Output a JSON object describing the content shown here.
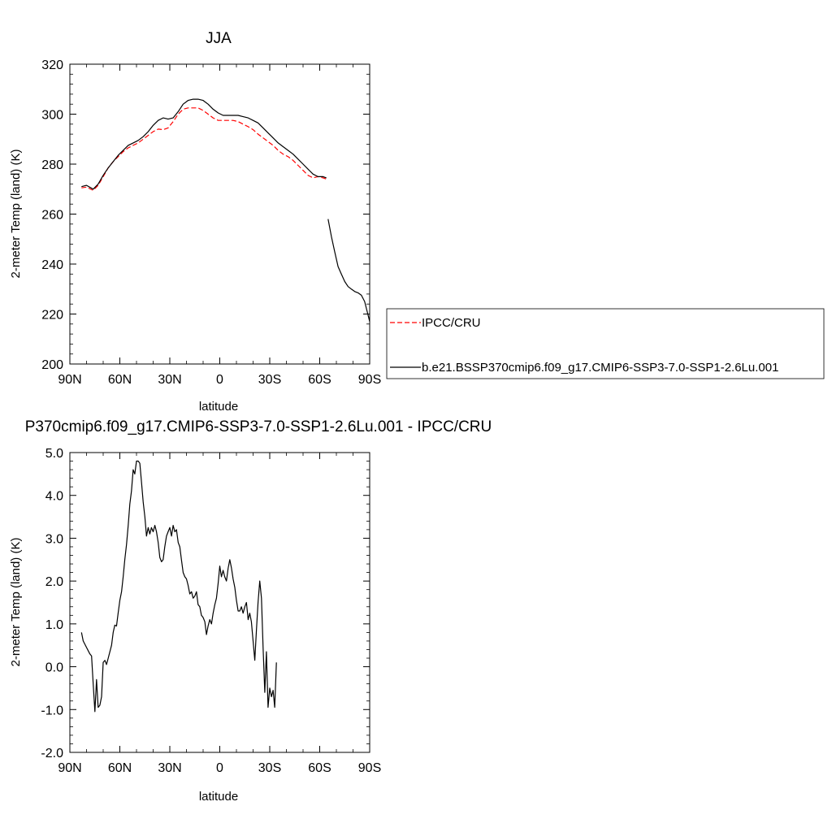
{
  "chart_data": [
    {
      "type": "line",
      "title": "JJA",
      "xlabel": "latitude",
      "ylabel": "2-meter Temp (land) (K)",
      "xlim": [
        90,
        -90
      ],
      "ylim": [
        200,
        320
      ],
      "x_ticks": [
        90,
        60,
        30,
        0,
        -30,
        -60,
        -90
      ],
      "x_tick_labels": [
        "90N",
        "60N",
        "30N",
        "0",
        "30S",
        "60S",
        "90S"
      ],
      "y_ticks": [
        200,
        220,
        240,
        260,
        280,
        300,
        320
      ],
      "y_tick_labels": [
        "200",
        "220",
        "240",
        "260",
        "280",
        "300",
        "320"
      ],
      "legend": {
        "placement": "outside-right"
      },
      "series": [
        {
          "name": "IPCC/CRU",
          "color": "#ff0000",
          "style": "dashed",
          "segments": [
            [
              [
                83,
                270.5
              ],
              [
                80,
                270.8
              ],
              [
                76,
                269.5
              ],
              [
                73,
                271.5
              ],
              [
                70,
                275
              ],
              [
                67,
                278.5
              ],
              [
                64,
                281
              ],
              [
                61,
                283
              ],
              [
                58,
                285
              ],
              [
                55,
                286.5
              ],
              [
                52,
                287.5
              ],
              [
                49,
                288.5
              ],
              [
                46,
                290
              ],
              [
                43,
                291.5
              ],
              [
                40,
                293
              ],
              [
                37,
                294
              ],
              [
                34,
                293.8
              ],
              [
                31,
                294.5
              ],
              [
                28,
                297
              ],
              [
                25,
                300
              ],
              [
                22,
                302
              ],
              [
                19,
                302.5
              ],
              [
                16,
                302.5
              ],
              [
                13,
                302.5
              ],
              [
                10,
                301.5
              ],
              [
                7,
                300
              ],
              [
                4,
                298.5
              ],
              [
                1,
                297.5
              ],
              [
                -2,
                297.5
              ],
              [
                -5,
                297.5
              ],
              [
                -8,
                297.5
              ],
              [
                -11,
                297
              ],
              [
                -14,
                296
              ],
              [
                -17,
                295
              ],
              [
                -20,
                293.8
              ],
              [
                -23,
                292
              ],
              [
                -26,
                290.5
              ],
              [
                -29,
                289
              ],
              [
                -32,
                287.5
              ],
              [
                -35,
                285.5
              ],
              [
                -38,
                284
              ],
              [
                -41,
                283
              ],
              [
                -44,
                281.5
              ],
              [
                -47,
                279.5
              ],
              [
                -50,
                277.5
              ],
              [
                -53,
                275.5
              ],
              [
                -56,
                274.5
              ],
              [
                -59,
                275
              ],
              [
                -62,
                274.5
              ],
              [
                -64,
                274
              ]
            ]
          ]
        },
        {
          "name": "b.e21.BSSP370cmip6.f09_g17.CMIP6-SSP3-7.0-SSP1-2.6Lu.001",
          "color": "#000000",
          "style": "solid",
          "segments": [
            [
              [
                83,
                271
              ],
              [
                80,
                271.5
              ],
              [
                76,
                270
              ],
              [
                73,
                272
              ],
              [
                70,
                275.5
              ],
              [
                67,
                278.5
              ],
              [
                64,
                281
              ],
              [
                61,
                283.5
              ],
              [
                58,
                285.5
              ],
              [
                55,
                287.5
              ],
              [
                52,
                288.5
              ],
              [
                49,
                289.5
              ],
              [
                46,
                291
              ],
              [
                43,
                293
              ],
              [
                40,
                295.5
              ],
              [
                37,
                297.5
              ],
              [
                34,
                298.5
              ],
              [
                31,
                298
              ],
              [
                28,
                298.5
              ],
              [
                25,
                301
              ],
              [
                22,
                304
              ],
              [
                19,
                305.5
              ],
              [
                16,
                306
              ],
              [
                13,
                306
              ],
              [
                10,
                305.5
              ],
              [
                7,
                304
              ],
              [
                4,
                302
              ],
              [
                1,
                300.5
              ],
              [
                -2,
                299.5
              ],
              [
                -5,
                299.5
              ],
              [
                -8,
                299.5
              ],
              [
                -11,
                299.5
              ],
              [
                -14,
                299
              ],
              [
                -17,
                298.5
              ],
              [
                -20,
                297.5
              ],
              [
                -23,
                296.5
              ],
              [
                -26,
                294.5
              ],
              [
                -29,
                292.5
              ],
              [
                -32,
                290.5
              ],
              [
                -35,
                288.5
              ],
              [
                -38,
                287
              ],
              [
                -41,
                285.5
              ],
              [
                -44,
                284
              ],
              [
                -47,
                282
              ],
              [
                -50,
                280
              ],
              [
                -53,
                278
              ],
              [
                -56,
                276
              ],
              [
                -59,
                275
              ],
              [
                -62,
                275
              ],
              [
                -64,
                274.5
              ]
            ],
            [
              [
                -65,
                258
              ],
              [
                -67,
                251
              ],
              [
                -69,
                245
              ],
              [
                -71,
                239
              ],
              [
                -73,
                236
              ],
              [
                -75,
                233
              ],
              [
                -77,
                231
              ],
              [
                -79,
                230
              ],
              [
                -81,
                229
              ],
              [
                -83,
                228.5
              ],
              [
                -85,
                227.5
              ],
              [
                -87,
                225
              ],
              [
                -88.5,
                221
              ],
              [
                -90,
                217
              ]
            ]
          ]
        }
      ]
    },
    {
      "type": "line",
      "title": "P370cmip6.f09_g17.CMIP6-SSP3-7.0-SSP1-2.6Lu.001 - IPCC/CRU",
      "xlabel": "latitude",
      "ylabel": "2-meter Temp (land) (K)",
      "xlim": [
        90,
        -90
      ],
      "ylim": [
        -2.0,
        5.0
      ],
      "x_ticks": [
        90,
        60,
        30,
        0,
        -30,
        -60,
        -90
      ],
      "x_tick_labels": [
        "90N",
        "60N",
        "30N",
        "0",
        "30S",
        "60S",
        "90S"
      ],
      "y_ticks": [
        -2.0,
        -1.0,
        0.0,
        1.0,
        2.0,
        3.0,
        4.0,
        5.0
      ],
      "y_tick_labels": [
        "-2.0",
        "-1.0",
        "0.0",
        "1.0",
        "2.0",
        "3.0",
        "4.0",
        "5.0"
      ],
      "series": [
        {
          "color": "#000000",
          "style": "solid",
          "segments": [
            [
              [
                83,
                0.8
              ],
              [
                82,
                0.6
              ],
              [
                80,
                0.45
              ],
              [
                78,
                0.3
              ],
              [
                77,
                0.25
              ],
              [
                76,
                -0.4
              ],
              [
                75,
                -1.05
              ],
              [
                74,
                -0.3
              ],
              [
                73,
                -0.95
              ],
              [
                72,
                -0.9
              ],
              [
                71,
                -0.7
              ],
              [
                70,
                0.1
              ],
              [
                69,
                0.15
              ],
              [
                68,
                0.05
              ],
              [
                67,
                0.2
              ],
              [
                65,
                0.5
              ],
              [
                64,
                0.8
              ],
              [
                63,
                0.97
              ],
              [
                62,
                0.95
              ],
              [
                61,
                1.25
              ],
              [
                60,
                1.55
              ],
              [
                59,
                1.75
              ],
              [
                58,
                2.1
              ],
              [
                57,
                2.5
              ],
              [
                56,
                2.85
              ],
              [
                55,
                3.3
              ],
              [
                54,
                3.8
              ],
              [
                53,
                4.1
              ],
              [
                52,
                4.6
              ],
              [
                51,
                4.5
              ],
              [
                50,
                4.8
              ],
              [
                49,
                4.8
              ],
              [
                48,
                4.75
              ],
              [
                47,
                4.3
              ],
              [
                46,
                3.85
              ],
              [
                45,
                3.5
              ],
              [
                44,
                3.05
              ],
              [
                43,
                3.25
              ],
              [
                42,
                3.1
              ],
              [
                41,
                3.25
              ],
              [
                40,
                3.15
              ],
              [
                39,
                3.3
              ],
              [
                38,
                3.15
              ],
              [
                37,
                2.9
              ],
              [
                36,
                2.55
              ],
              [
                35,
                2.45
              ],
              [
                34,
                2.5
              ],
              [
                33,
                2.8
              ],
              [
                32,
                3.05
              ],
              [
                31,
                3.15
              ],
              [
                30,
                3.25
              ],
              [
                29,
                3.05
              ],
              [
                28,
                3.3
              ],
              [
                27,
                3.15
              ],
              [
                26,
                3.2
              ],
              [
                25,
                2.9
              ],
              [
                24,
                2.8
              ],
              [
                23,
                2.5
              ],
              [
                22,
                2.2
              ],
              [
                21,
                2.1
              ],
              [
                20,
                2.05
              ],
              [
                19,
                1.9
              ],
              [
                18,
                1.7
              ],
              [
                17,
                1.75
              ],
              [
                16,
                1.6
              ],
              [
                15,
                1.65
              ],
              [
                14,
                1.75
              ],
              [
                13,
                1.45
              ],
              [
                12,
                1.4
              ],
              [
                11,
                1.2
              ],
              [
                10,
                1.15
              ],
              [
                9,
                1.05
              ],
              [
                8,
                0.75
              ],
              [
                7,
                0.95
              ],
              [
                6,
                1.1
              ],
              [
                5,
                1.0
              ],
              [
                4,
                1.25
              ],
              [
                3,
                1.45
              ],
              [
                2,
                1.6
              ],
              [
                1,
                1.95
              ],
              [
                0,
                2.35
              ],
              [
                -1,
                2.1
              ],
              [
                -2,
                2.25
              ],
              [
                -3,
                2.1
              ],
              [
                -4,
                2.0
              ],
              [
                -5,
                2.3
              ],
              [
                -6,
                2.5
              ],
              [
                -7,
                2.3
              ],
              [
                -8,
                2.05
              ],
              [
                -9,
                1.85
              ],
              [
                -10,
                1.55
              ],
              [
                -11,
                1.3
              ],
              [
                -12,
                1.3
              ],
              [
                -13,
                1.4
              ],
              [
                -14,
                1.25
              ],
              [
                -15,
                1.4
              ],
              [
                -16,
                1.5
              ],
              [
                -17,
                1.1
              ],
              [
                -18,
                1.25
              ],
              [
                -19,
                1.05
              ],
              [
                -20,
                0.6
              ],
              [
                -21,
                0.15
              ],
              [
                -22,
                0.85
              ],
              [
                -23,
                1.5
              ],
              [
                -24,
                2.0
              ],
              [
                -25,
                1.6
              ],
              [
                -26,
                0.45
              ],
              [
                -27,
                -0.6
              ],
              [
                -28,
                0.35
              ],
              [
                -29,
                -0.95
              ],
              [
                -30,
                -0.5
              ],
              [
                -31,
                -0.7
              ],
              [
                -32,
                -0.55
              ],
              [
                -33,
                -0.95
              ],
              [
                -34,
                0.1
              ]
            ]
          ]
        }
      ]
    }
  ]
}
